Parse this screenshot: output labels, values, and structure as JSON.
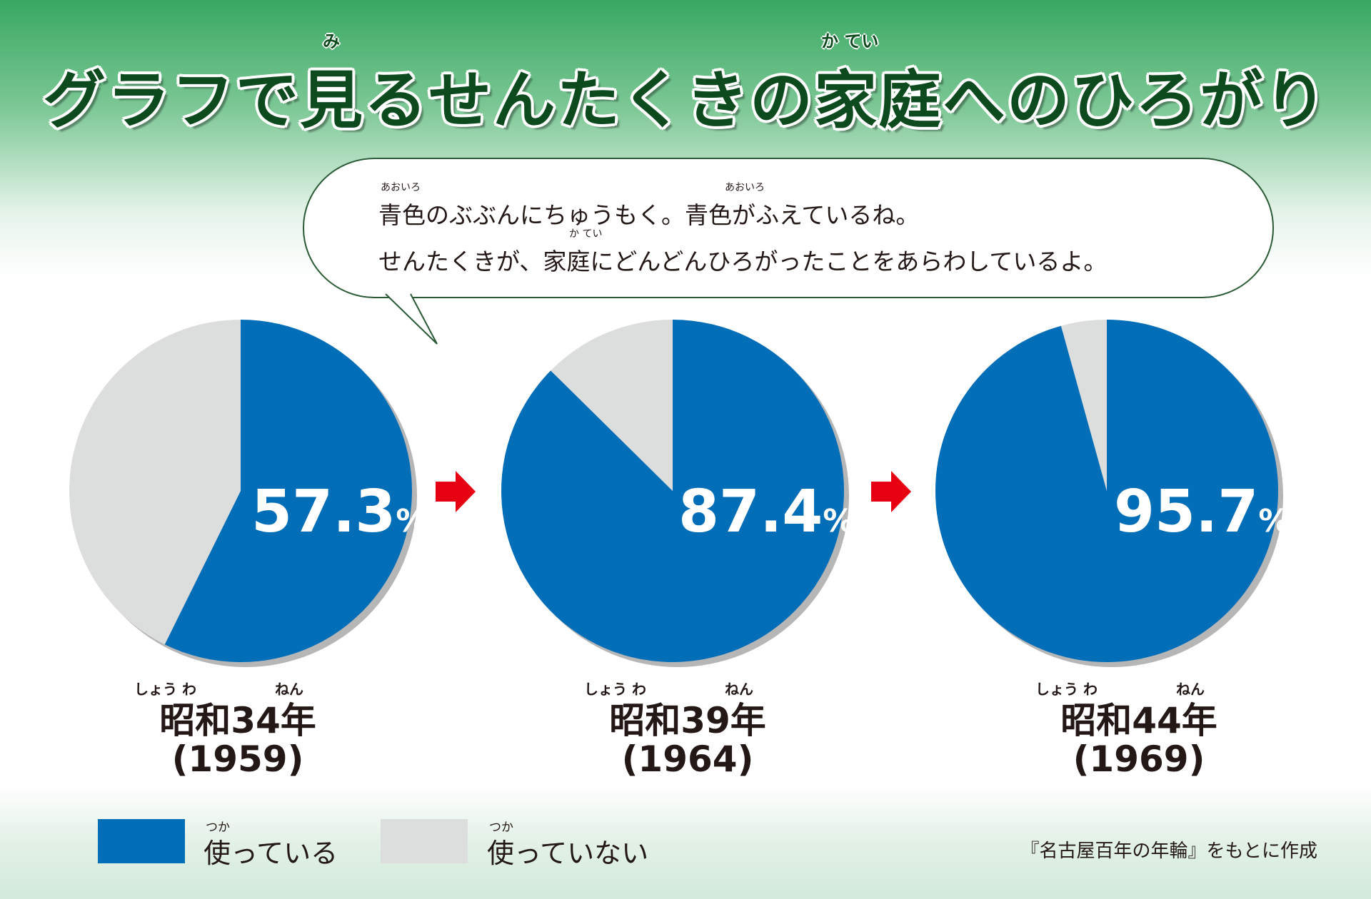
{
  "title": "グラフで見るせんたくきの家庭へのひろがり",
  "title_ruby": {
    "mi": "み",
    "katei": "か てい"
  },
  "bubble": {
    "ruby_1": "あおいろ",
    "ruby_2": "あおいろ",
    "ruby_3": "か てい",
    "line1": "青色のぶぶんにちゅうもく。青色がふえているね。",
    "line2": "せんたくきが、家庭にどんどんひろがったことをあらわしているよ。"
  },
  "charts": [
    {
      "era": "昭和34年",
      "year": "(1959)",
      "ruby_showa": "しょう わ",
      "ruby_nen": "ねん",
      "percent": "57.3",
      "unit": "%"
    },
    {
      "era": "昭和39年",
      "year": "(1964)",
      "ruby_showa": "しょう わ",
      "ruby_nen": "ねん",
      "percent": "87.4",
      "unit": "%"
    },
    {
      "era": "昭和44年",
      "year": "(1969)",
      "ruby_showa": "しょう わ",
      "ruby_nen": "ねん",
      "percent": "95.7",
      "unit": "%"
    }
  ],
  "legend": {
    "using": "使っている",
    "not_using": "使っていない",
    "ruby_tsuka": "つか"
  },
  "source": "『名古屋百年の年輪』をもとに作成",
  "colors": {
    "using": "#036eb8",
    "not_using": "#dcdddd",
    "arrow": "#e60012",
    "title": "#0d4a1e"
  },
  "chart_data": {
    "type": "pie",
    "categories": [
      "昭和34年 (1959)",
      "昭和39年 (1964)",
      "昭和44年 (1969)"
    ],
    "series": [
      {
        "name": "使っている",
        "values": [
          57.3,
          87.4,
          95.7
        ]
      },
      {
        "name": "使っていない",
        "values": [
          42.7,
          12.6,
          4.3
        ]
      }
    ],
    "title": "グラフで見るせんたくきの家庭へのひろがり",
    "unit": "%",
    "legend": "bottom-left"
  }
}
